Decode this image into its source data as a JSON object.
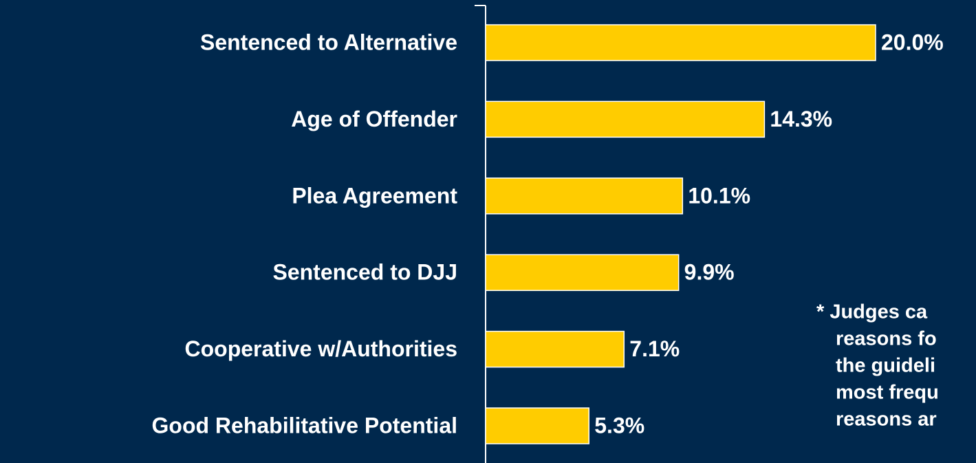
{
  "chart_data": {
    "type": "barh",
    "categories": [
      "Sentenced to Alternative",
      "Age of Offender",
      "Plea Agreement",
      "Sentenced to DJJ",
      "Cooperative w/Authorities",
      "Good Rehabilitative Potential"
    ],
    "values": [
      20.0,
      14.3,
      10.1,
      9.9,
      7.1,
      5.3
    ],
    "value_labels": [
      "20.0%",
      "14.3%",
      "10.1%",
      "9.9%",
      "7.1%",
      "5.3%"
    ],
    "color": "#ffcc00",
    "xlim": [
      0,
      20
    ],
    "note": [
      "* Judges ca",
      "reasons fo",
      "the guideli",
      "most frequ",
      "reasons ar"
    ]
  }
}
